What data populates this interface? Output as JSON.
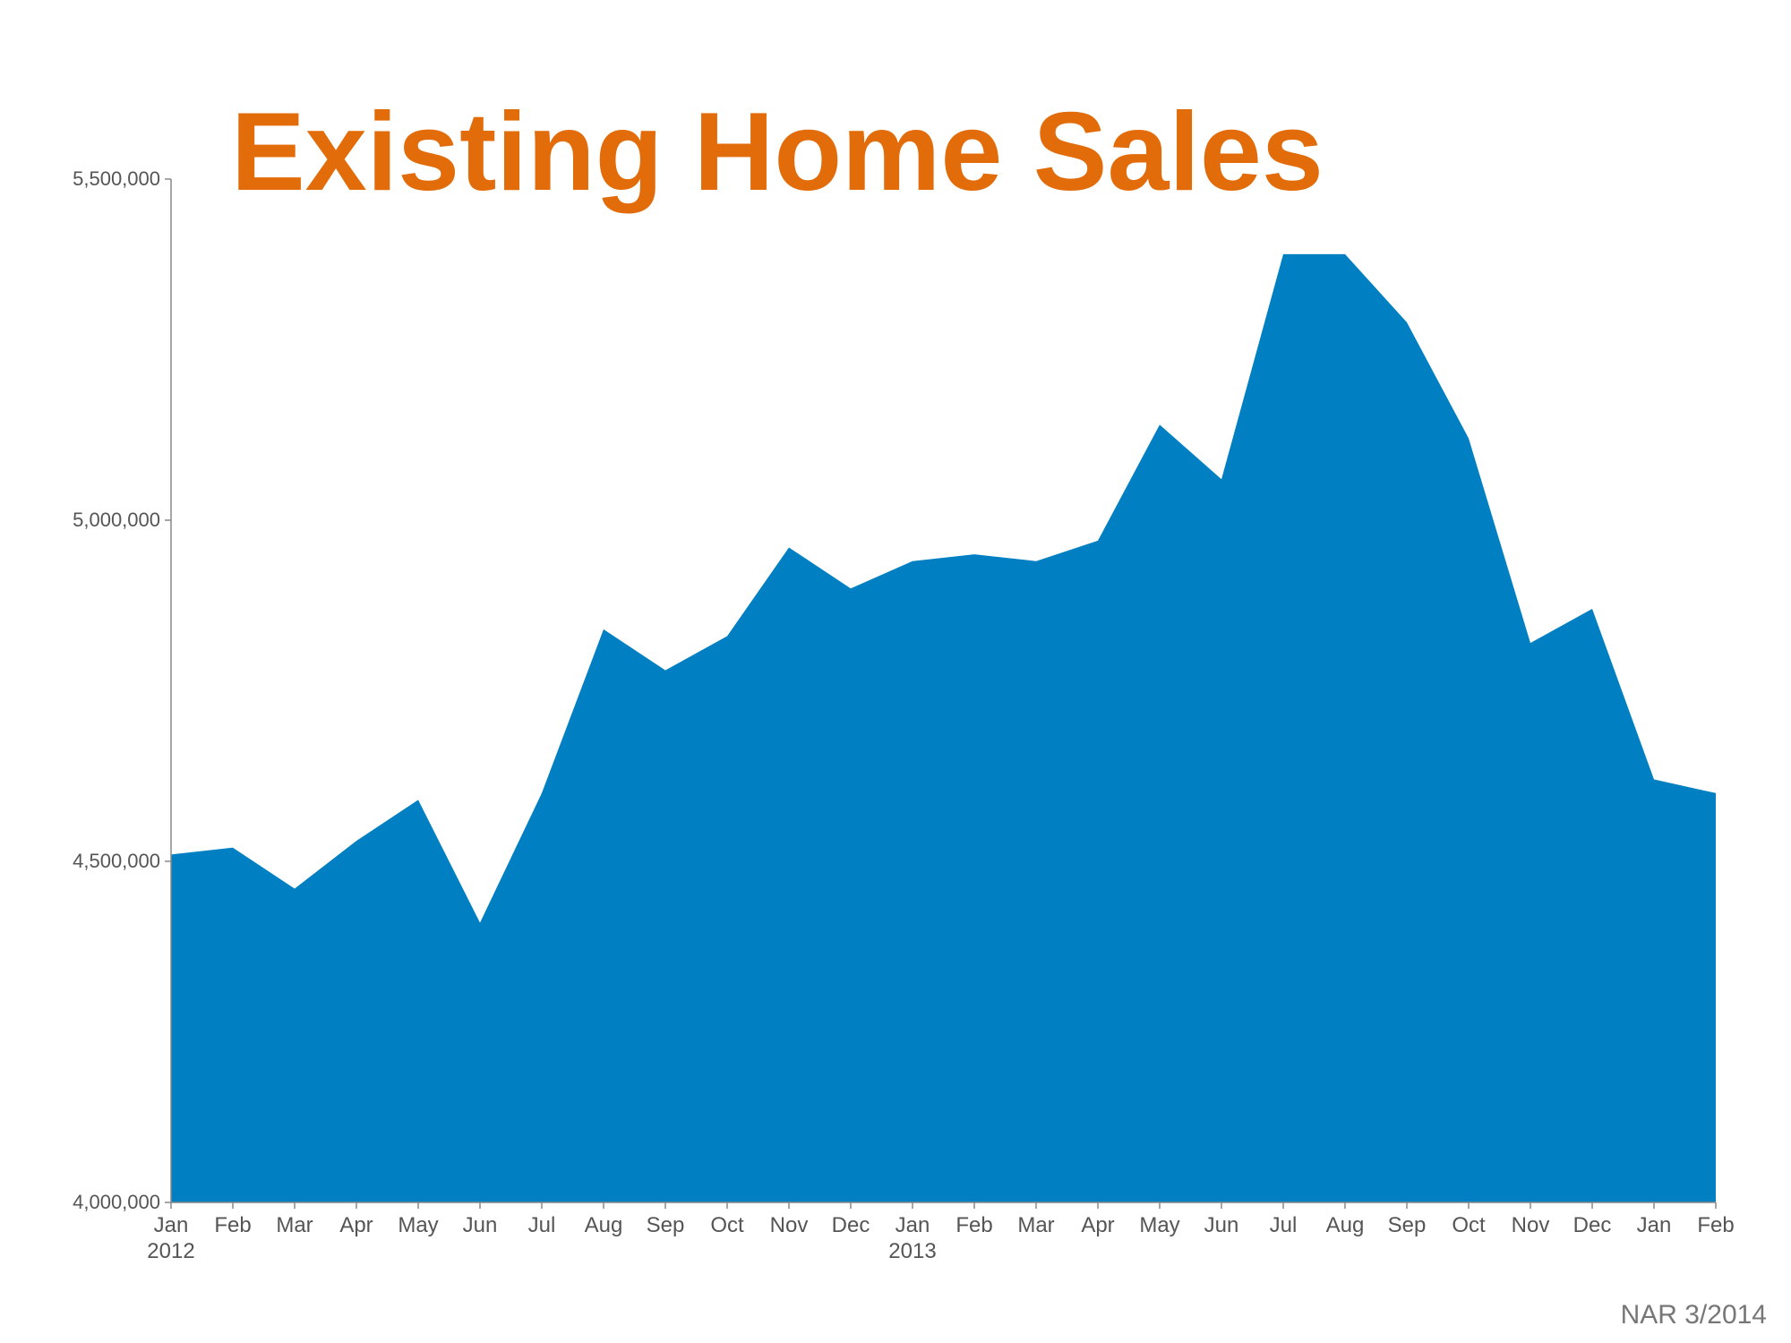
{
  "chart_data": {
    "type": "area",
    "title": "Existing Home Sales",
    "categories": [
      "Jan",
      "Feb",
      "Mar",
      "Apr",
      "May",
      "Jun",
      "Jul",
      "Aug",
      "Sep",
      "Oct",
      "Nov",
      "Dec",
      "Jan",
      "Feb",
      "Mar",
      "Apr",
      "May",
      "Jun",
      "Jul",
      "Aug",
      "Sep",
      "Oct",
      "Nov",
      "Dec",
      "Jan",
      "Feb"
    ],
    "category_years": [
      "2012",
      null,
      null,
      null,
      null,
      null,
      null,
      null,
      null,
      null,
      null,
      null,
      "2013",
      null,
      null,
      null,
      null,
      null,
      null,
      null,
      null,
      null,
      null,
      null,
      null,
      null
    ],
    "values": [
      4510000,
      4520000,
      4460000,
      4530000,
      4590000,
      4410000,
      4600000,
      4840000,
      4780000,
      4830000,
      4960000,
      4900000,
      4940000,
      4950000,
      4940000,
      4970000,
      5140000,
      5060000,
      5390000,
      5390000,
      5290000,
      5120000,
      4820000,
      4870000,
      4620000,
      4600000
    ],
    "color": "#0080c2",
    "ylim": [
      4000000,
      5500000
    ],
    "yticks": [
      {
        "value": 4000000,
        "label": "4,000,000"
      },
      {
        "value": 4500000,
        "label": "4,500,000"
      },
      {
        "value": 5000000,
        "label": "5,000,000"
      },
      {
        "value": 5500000,
        "label": "5,500,000"
      }
    ],
    "source": "NAR 3/2014"
  }
}
